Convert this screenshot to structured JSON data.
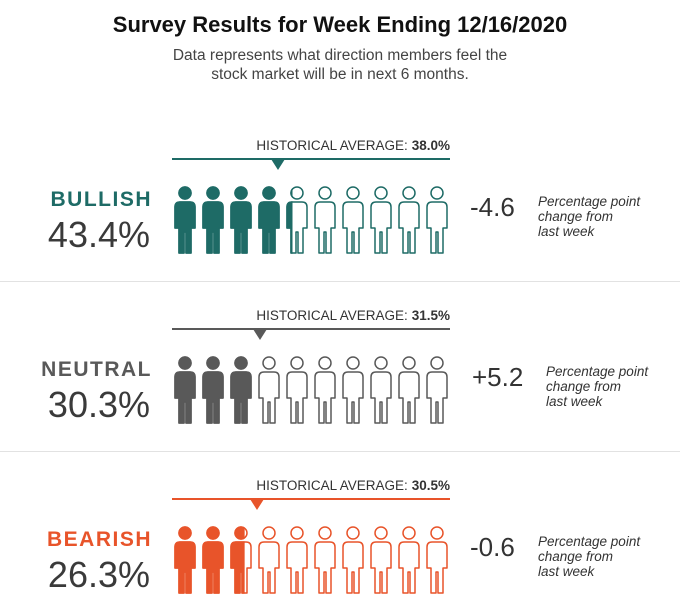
{
  "title": "Survey Results for Week Ending 12/16/2020",
  "subtitle_lines": [
    "Data represents what direction members feel the",
    "stock market will be in next 6 months."
  ],
  "historical_label": "HISTORICAL AVERAGE:",
  "change_note_lines": [
    "Percentage point",
    "change from",
    "last week"
  ],
  "chart_data": {
    "type": "pictograph",
    "icon_count": 10,
    "colors": {
      "bullish": "#1e6b66",
      "neutral": "#595959",
      "bearish": "#e8542a"
    },
    "series": [
      {
        "key": "bullish",
        "name": "BULLISH",
        "value": 43.4,
        "value_label": "43.4%",
        "historical_average": 38.0,
        "historical_label": "38.0%",
        "change": -4.6,
        "change_label": "-4.6"
      },
      {
        "key": "neutral",
        "name": "NEUTRAL",
        "value": 30.3,
        "value_label": "30.3%",
        "historical_average": 31.5,
        "historical_label": "31.5%",
        "change": 5.2,
        "change_label": "+5.2"
      },
      {
        "key": "bearish",
        "name": "BEARISH",
        "value": 26.3,
        "value_label": "26.3%",
        "historical_average": 30.5,
        "historical_label": "30.5%",
        "change": -0.6,
        "change_label": "-0.6"
      }
    ]
  }
}
